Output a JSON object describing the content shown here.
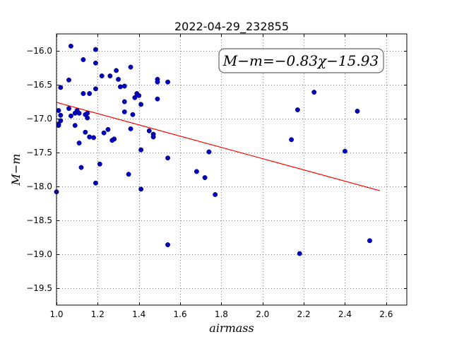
{
  "chart_data": {
    "type": "scatter",
    "title": "2022-04-29_232855",
    "xlabel": "airmass",
    "ylabel": "M−m",
    "xlim": [
      1.0,
      2.7
    ],
    "ylim": [
      -19.75,
      -15.75
    ],
    "xticks": [
      1.0,
      1.2,
      1.4,
      1.6,
      1.8,
      2.0,
      2.2,
      2.4,
      2.6
    ],
    "xtick_labels": [
      "1.0",
      "1.2",
      "1.4",
      "1.6",
      "1.8",
      "2.0",
      "2.2",
      "2.4",
      "2.6"
    ],
    "yticks": [
      -16.0,
      -16.5,
      -17.0,
      -17.5,
      -18.0,
      -18.5,
      -19.0,
      -19.5
    ],
    "ytick_labels": [
      "−16.0",
      "−16.5",
      "−17.0",
      "−17.5",
      "−18.0",
      "−18.5",
      "−19.0",
      "−19.5"
    ],
    "grid": true,
    "annotation": "M−m=−0.83χ−15.93",
    "point_color": "#0000bf",
    "fit_color": "#ff0000",
    "fit_line": {
      "slope": -0.83,
      "intercept": -15.93,
      "x": [
        1.0,
        2.57
      ]
    },
    "points": [
      {
        "x": 1.07,
        "y": -15.93
      },
      {
        "x": 1.19,
        "y": -15.98
      },
      {
        "x": 1.13,
        "y": -16.13
      },
      {
        "x": 1.19,
        "y": -16.18
      },
      {
        "x": 1.36,
        "y": -16.24
      },
      {
        "x": 1.29,
        "y": -16.29
      },
      {
        "x": 1.26,
        "y": -16.37
      },
      {
        "x": 1.22,
        "y": -16.37
      },
      {
        "x": 1.06,
        "y": -16.43
      },
      {
        "x": 1.3,
        "y": -16.42
      },
      {
        "x": 1.49,
        "y": -16.42
      },
      {
        "x": 1.49,
        "y": -16.46
      },
      {
        "x": 1.54,
        "y": -16.46
      },
      {
        "x": 1.31,
        "y": -16.53
      },
      {
        "x": 1.33,
        "y": -16.52
      },
      {
        "x": 1.02,
        "y": -16.54
      },
      {
        "x": 1.19,
        "y": -16.56
      },
      {
        "x": 1.13,
        "y": -16.63
      },
      {
        "x": 1.16,
        "y": -16.63
      },
      {
        "x": 1.39,
        "y": -16.63
      },
      {
        "x": 1.4,
        "y": -16.66
      },
      {
        "x": 1.38,
        "y": -16.69
      },
      {
        "x": 1.49,
        "y": -16.71
      },
      {
        "x": 1.33,
        "y": -16.75
      },
      {
        "x": 1.41,
        "y": -16.79
      },
      {
        "x": 1.06,
        "y": -16.85
      },
      {
        "x": 1.1,
        "y": -16.88
      },
      {
        "x": 1.01,
        "y": -16.88
      },
      {
        "x": 1.33,
        "y": -16.9
      },
      {
        "x": 1.09,
        "y": -16.92
      },
      {
        "x": 1.11,
        "y": -16.92
      },
      {
        "x": 1.15,
        "y": -16.92
      },
      {
        "x": 1.14,
        "y": -16.94
      },
      {
        "x": 1.37,
        "y": -16.94
      },
      {
        "x": 1.02,
        "y": -16.95
      },
      {
        "x": 1.07,
        "y": -16.96
      },
      {
        "x": 1.15,
        "y": -16.99
      },
      {
        "x": 1.02,
        "y": -17.03
      },
      {
        "x": 1.01,
        "y": -17.08
      },
      {
        "x": 1.01,
        "y": -17.1
      },
      {
        "x": 1.09,
        "y": -17.1
      },
      {
        "x": 1.36,
        "y": -17.15
      },
      {
        "x": 1.25,
        "y": -17.16
      },
      {
        "x": 1.45,
        "y": -17.18
      },
      {
        "x": 1.14,
        "y": -17.2
      },
      {
        "x": 1.23,
        "y": -17.21
      },
      {
        "x": 1.47,
        "y": -17.23
      },
      {
        "x": 1.47,
        "y": -17.27
      },
      {
        "x": 1.16,
        "y": -17.27
      },
      {
        "x": 1.18,
        "y": -17.28
      },
      {
        "x": 1.28,
        "y": -17.3
      },
      {
        "x": 1.27,
        "y": -17.32
      },
      {
        "x": 1.11,
        "y": -17.36
      },
      {
        "x": 1.41,
        "y": -17.46
      },
      {
        "x": 1.74,
        "y": -17.49
      },
      {
        "x": 1.54,
        "y": -17.58
      },
      {
        "x": 1.21,
        "y": -17.67
      },
      {
        "x": 1.12,
        "y": -17.72
      },
      {
        "x": 1.68,
        "y": -17.78
      },
      {
        "x": 1.35,
        "y": -17.82
      },
      {
        "x": 1.72,
        "y": -17.87
      },
      {
        "x": 1.19,
        "y": -17.95
      },
      {
        "x": 1.41,
        "y": -18.04
      },
      {
        "x": 1.0,
        "y": -18.08
      },
      {
        "x": 1.77,
        "y": -18.12
      },
      {
        "x": 1.54,
        "y": -18.86
      },
      {
        "x": 2.17,
        "y": -16.87
      },
      {
        "x": 2.25,
        "y": -16.61
      },
      {
        "x": 2.46,
        "y": -16.89
      },
      {
        "x": 2.14,
        "y": -17.31
      },
      {
        "x": 2.4,
        "y": -17.48
      },
      {
        "x": 2.52,
        "y": -18.8
      },
      {
        "x": 2.18,
        "y": -18.99
      }
    ]
  }
}
